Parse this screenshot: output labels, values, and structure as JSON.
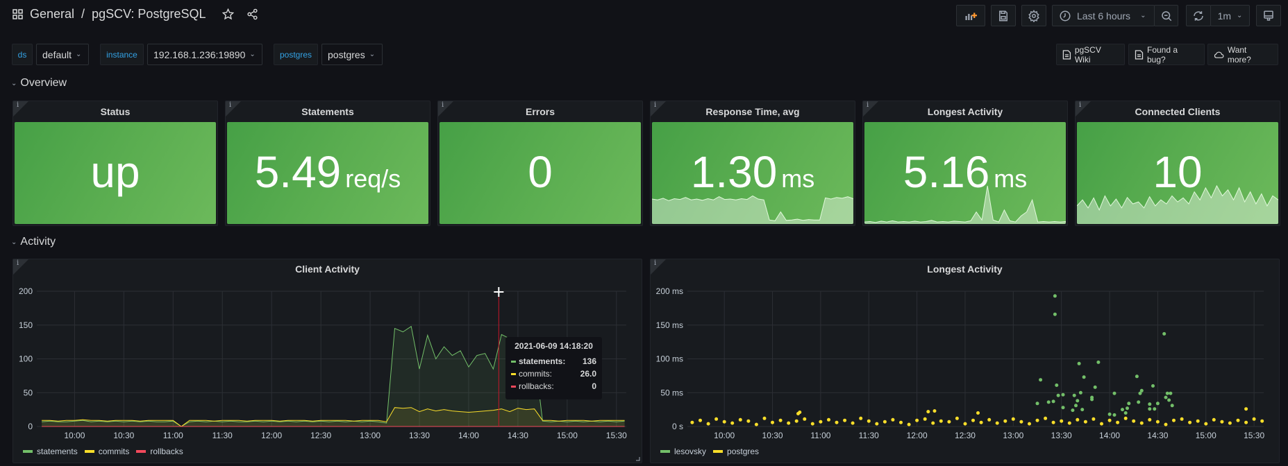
{
  "header": {
    "breadcrumb_root": "General",
    "separator": "/",
    "dashboard_title": "pgSCV: PostgreSQL",
    "time_range": "Last 6 hours",
    "refresh_interval": "1m"
  },
  "variables": [
    {
      "label": "ds",
      "value": "default"
    },
    {
      "label": "instance",
      "value": "192.168.1.236:19890"
    },
    {
      "label": "postgres",
      "value": "postgres"
    }
  ],
  "links": [
    {
      "label": "pgSCV Wiki",
      "icon": "document-icon"
    },
    {
      "label": "Found a bug?",
      "icon": "document-icon"
    },
    {
      "label": "Want more?",
      "icon": "cloud-icon"
    }
  ],
  "rows": {
    "overview": "Overview",
    "activity": "Activity"
  },
  "colors": {
    "stat_green": "#56a64b",
    "statements": "#73bf69",
    "commits": "#fade2a",
    "rollbacks": "#f2495c",
    "lesovsky": "#73bf69",
    "postgres": "#fade2a"
  },
  "stats": [
    {
      "title": "Status",
      "value": "up",
      "unit": ""
    },
    {
      "title": "Statements",
      "value": "5.49",
      "unit": "req/s"
    },
    {
      "title": "Errors",
      "value": "0",
      "unit": ""
    },
    {
      "title": "Response Time, avg",
      "value": "1.30",
      "unit": "ms",
      "sparkline": [
        0.62,
        0.6,
        0.64,
        0.58,
        0.63,
        0.61,
        0.66,
        0.6,
        0.62,
        0.59,
        0.63,
        0.6,
        0.68,
        0.61,
        0.62,
        0.6,
        0.63,
        0.61,
        0.7,
        0.62,
        0.6,
        0.1,
        0.08,
        0.3,
        0.09,
        0.1,
        0.12,
        0.09,
        0.11,
        0.1,
        0.1,
        0.65,
        0.62,
        0.66,
        0.64,
        0.68,
        0.63
      ]
    },
    {
      "title": "Longest Activity",
      "value": "5.16",
      "unit": "ms",
      "sparkline": [
        0.05,
        0.06,
        0.04,
        0.07,
        0.05,
        0.08,
        0.05,
        0.06,
        0.05,
        0.07,
        0.05,
        0.06,
        0.09,
        0.05,
        0.06,
        0.05,
        0.07,
        0.06,
        0.05,
        0.08,
        0.3,
        0.1,
        0.95,
        0.1,
        0.05,
        0.35,
        0.08,
        0.05,
        0.2,
        0.3,
        0.6,
        0.05,
        0.06,
        0.05,
        0.06,
        0.05,
        0.06
      ]
    },
    {
      "title": "Connected Clients",
      "value": "10",
      "unit": "",
      "sparkline": [
        0.45,
        0.6,
        0.4,
        0.65,
        0.35,
        0.7,
        0.45,
        0.62,
        0.4,
        0.66,
        0.5,
        0.55,
        0.4,
        0.68,
        0.45,
        0.6,
        0.5,
        0.7,
        0.55,
        0.65,
        0.5,
        0.8,
        0.6,
        0.9,
        0.65,
        0.95,
        0.7,
        0.85,
        0.6,
        0.9,
        0.55,
        0.8,
        0.5,
        0.75,
        0.45,
        0.7,
        0.6
      ]
    }
  ],
  "chart_data": [
    {
      "type": "line",
      "title": "Client Activity",
      "xlim": [
        "09:37",
        "15:36"
      ],
      "ylim": [
        0,
        200
      ],
      "yticks": [
        "0",
        "50",
        "100",
        "150",
        "200"
      ],
      "xticks": [
        "10:00",
        "10:30",
        "11:00",
        "11:30",
        "12:00",
        "12:30",
        "13:00",
        "13:30",
        "14:00",
        "14:30",
        "15:00",
        "15:30"
      ],
      "x_start": "09:40",
      "x_step_minutes": 5,
      "series": [
        {
          "name": "statements",
          "values": [
            7,
            8,
            7,
            7,
            8,
            9,
            7,
            8,
            7,
            8,
            7,
            8,
            7,
            8,
            7,
            7,
            8,
            0,
            7,
            8,
            7,
            8,
            7,
            8,
            7,
            7,
            8,
            7,
            8,
            7,
            8,
            7,
            8,
            7,
            8,
            7,
            8,
            7,
            8,
            7,
            8,
            7,
            5,
            145,
            140,
            148,
            85,
            135,
            100,
            118,
            105,
            112,
            88,
            105,
            108,
            85,
            136,
            130,
            125,
            120,
            110,
            8,
            7,
            8,
            7,
            8,
            7,
            8,
            7,
            8,
            7,
            8
          ]
        },
        {
          "name": "commits",
          "values": [
            9,
            9,
            8,
            9,
            9,
            10,
            9,
            9,
            8,
            9,
            9,
            9,
            8,
            9,
            9,
            9,
            9,
            0,
            9,
            9,
            9,
            8,
            9,
            9,
            9,
            8,
            9,
            9,
            9,
            8,
            9,
            9,
            9,
            8,
            9,
            9,
            9,
            9,
            8,
            9,
            9,
            9,
            7,
            28,
            27,
            28,
            22,
            26,
            23,
            25,
            23,
            22,
            21,
            22,
            23,
            24,
            26,
            22,
            27,
            25,
            26,
            9,
            9,
            8,
            9,
            9,
            9,
            8,
            9,
            9,
            9,
            9
          ]
        },
        {
          "name": "rollbacks",
          "values": [
            0,
            0,
            0,
            0,
            0,
            0,
            0,
            0,
            0,
            0,
            0,
            0,
            0,
            0,
            0,
            0,
            0,
            0,
            0,
            0,
            0,
            0,
            0,
            0,
            0,
            0,
            0,
            0,
            0,
            0,
            0,
            0,
            0,
            0,
            0,
            0,
            0,
            0,
            0,
            0,
            0,
            0,
            0,
            0,
            0,
            0,
            0,
            0,
            0,
            0,
            0,
            0,
            0,
            0,
            0,
            0,
            0,
            0,
            0,
            0,
            0,
            0,
            0,
            0,
            0,
            0,
            0,
            0,
            0,
            0,
            0,
            0
          ]
        }
      ],
      "tooltip": {
        "time": "2021-06-09 14:18:20",
        "rows": [
          {
            "name": "statements:",
            "value": "136"
          },
          {
            "name": "commits:",
            "value": "26.0"
          },
          {
            "name": "rollbacks:",
            "value": "0"
          }
        ]
      },
      "legend": [
        "statements",
        "commits",
        "rollbacks"
      ]
    },
    {
      "type": "scatter",
      "title": "Longest Activity",
      "xlim": [
        "09:37",
        "15:36"
      ],
      "ylim": [
        0,
        200
      ],
      "yticks": [
        "0 s",
        "50 ms",
        "100 ms",
        "150 ms",
        "200 ms"
      ],
      "xticks": [
        "10:00",
        "10:30",
        "11:00",
        "11:30",
        "12:00",
        "12:30",
        "13:00",
        "13:30",
        "14:00",
        "14:30",
        "15:00",
        "15:30"
      ],
      "series": [
        {
          "name": "lesovsky",
          "points": [
            [
              "13:15",
              34
            ],
            [
              "13:17",
              69
            ],
            [
              "13:22",
              36
            ],
            [
              "13:25",
              37
            ],
            [
              "13:26",
              193
            ],
            [
              "13:26",
              166
            ],
            [
              "13:27",
              61
            ],
            [
              "13:28",
              46
            ],
            [
              "13:31",
              47
            ],
            [
              "13:31",
              28
            ],
            [
              "13:37",
              24
            ],
            [
              "13:38",
              46
            ],
            [
              "13:39",
              31
            ],
            [
              "13:40",
              38
            ],
            [
              "13:41",
              93
            ],
            [
              "13:42",
              50
            ],
            [
              "13:43",
              25
            ],
            [
              "13:44",
              73
            ],
            [
              "13:49",
              40
            ],
            [
              "13:49",
              43
            ],
            [
              "13:51",
              58
            ],
            [
              "13:53",
              95
            ],
            [
              "14:00",
              18
            ],
            [
              "14:03",
              49
            ],
            [
              "14:03",
              17
            ],
            [
              "14:08",
              25
            ],
            [
              "14:10",
              20
            ],
            [
              "14:11",
              27
            ],
            [
              "14:12",
              34
            ],
            [
              "14:17",
              74
            ],
            [
              "14:18",
              36
            ],
            [
              "14:19",
              49
            ],
            [
              "14:20",
              53
            ],
            [
              "14:25",
              33
            ],
            [
              "14:25",
              26
            ],
            [
              "14:27",
              60
            ],
            [
              "14:28",
              26
            ],
            [
              "14:30",
              34
            ],
            [
              "14:34",
              137
            ],
            [
              "14:35",
              43
            ],
            [
              "14:36",
              49
            ],
            [
              "14:37",
              39
            ],
            [
              "14:38",
              49
            ],
            [
              "14:39",
              31
            ]
          ]
        },
        {
          "name": "postgres",
          "x_start": "09:40",
          "x_step_minutes": 5,
          "values": [
            6,
            9,
            4,
            11,
            7,
            5,
            10,
            8,
            3,
            12,
            6,
            9,
            5,
            8,
            11,
            4,
            7,
            10,
            6,
            9,
            5,
            12,
            8,
            4,
            7,
            10,
            6,
            3,
            9,
            11,
            5,
            8,
            7,
            12,
            4,
            9,
            6,
            10,
            5,
            8,
            11,
            7,
            4,
            9,
            12,
            6,
            8,
            5,
            10,
            7,
            11,
            4,
            9,
            6,
            12,
            8,
            5,
            10,
            7,
            3,
            9,
            11,
            6,
            8,
            4,
            10,
            7,
            5,
            9,
            6,
            11,
            8
          ],
          "outliers": [
            [
              "10:46",
              19
            ],
            [
              "10:47",
              21
            ],
            [
              "12:07",
              22
            ],
            [
              "12:11",
              23
            ],
            [
              "12:38",
              20
            ],
            [
              "15:25",
              26
            ]
          ]
        }
      ],
      "legend": [
        "lesovsky",
        "postgres"
      ]
    }
  ]
}
